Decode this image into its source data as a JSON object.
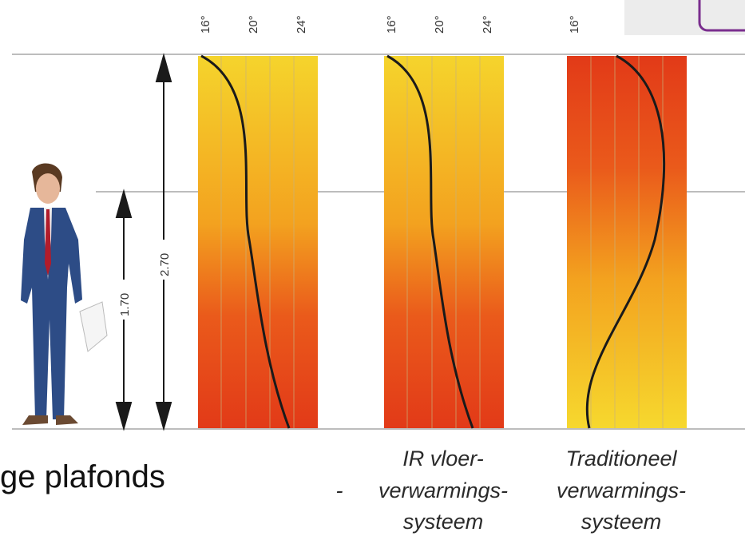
{
  "heights": {
    "ceiling_high": "2.70",
    "ceiling_low": "1.70"
  },
  "temperature_ticks": [
    "16°",
    "20°",
    "24°"
  ],
  "column_captions": [
    {
      "line1": "IR vloer-",
      "line2": "verwarmings-",
      "line3": "systeem"
    },
    {
      "line1": "Traditioneel",
      "line2": "verwarmings-",
      "line3": "systeem"
    }
  ],
  "bottom_text": "ge plafonds",
  "dash_text": "-",
  "colors": {
    "warm_top": "#f6d22a",
    "hot_red": "#e6321a",
    "accent_purple": "#7a2e8e"
  }
}
